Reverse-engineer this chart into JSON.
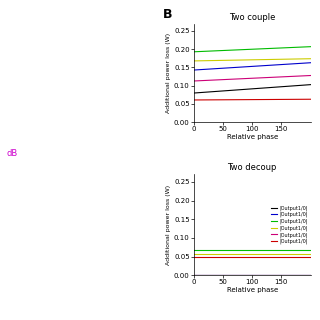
{
  "title_top": "Two couple",
  "title_bottom": "Two decoup",
  "xlabel": "Relative phase",
  "ylabel": "Additional power loss (W)",
  "panel_label": "B",
  "x_max": 200,
  "ylim": [
    0,
    0.27
  ],
  "yticks": [
    0,
    0.05,
    0.1,
    0.15,
    0.2,
    0.25
  ],
  "xticks": [
    0,
    50,
    100,
    150
  ],
  "top_lines": [
    {
      "color": "#00bb00",
      "y0": 0.193,
      "y1": 0.207
    },
    {
      "color": "#cccc00",
      "y0": 0.168,
      "y1": 0.174
    },
    {
      "color": "#0000cc",
      "y0": 0.143,
      "y1": 0.163
    },
    {
      "color": "#cc0077",
      "y0": 0.113,
      "y1": 0.128
    },
    {
      "color": "#000000",
      "y0": 0.08,
      "y1": 0.103
    },
    {
      "color": "#cc0000",
      "y0": 0.061,
      "y1": 0.063
    }
  ],
  "bottom_lines": [
    {
      "color": "#000000",
      "y0": 0.001,
      "y1": 0.001
    },
    {
      "color": "#0000cc",
      "y0": 0.001,
      "y1": 0.001
    },
    {
      "color": "#00bb00",
      "y0": 0.068,
      "y1": 0.068
    },
    {
      "color": "#cccc00",
      "y0": 0.058,
      "y1": 0.058
    },
    {
      "color": "#cc0077",
      "y0": 0.001,
      "y1": 0.001
    },
    {
      "color": "#cc0000",
      "y0": 0.048,
      "y1": 0.048
    }
  ],
  "legend_labels": [
    "|Output1/0|",
    "|Output1/0|",
    "|Output1/0|",
    "|Output1/0|",
    "|Output1/0|",
    "|Output1/0|"
  ],
  "bg_color": "#ffffff",
  "dB_label_color": "#cc00cc"
}
